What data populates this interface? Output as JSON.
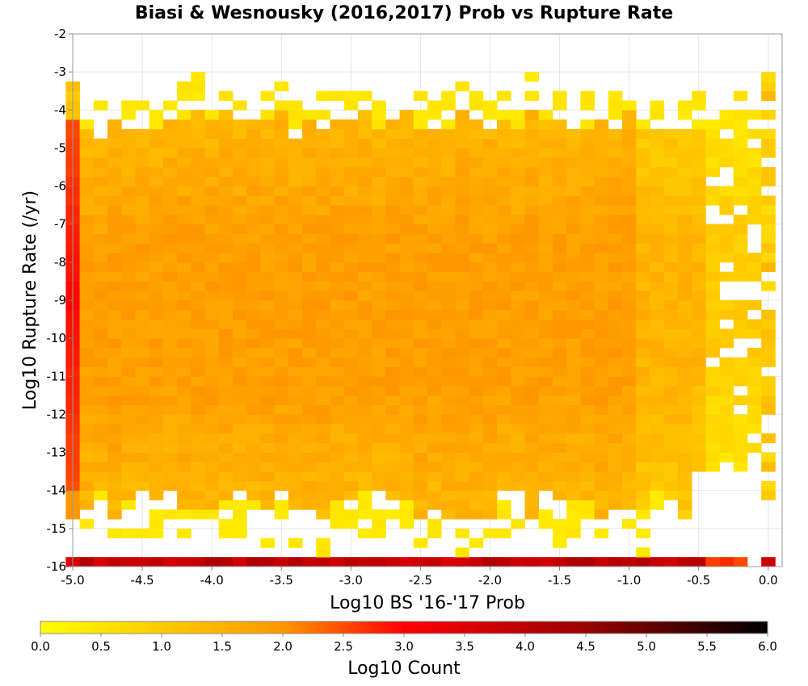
{
  "chart_data": {
    "type": "heatmap",
    "title": "Biasi & Wesnousky (2016,2017) Prob vs Rupture Rate",
    "xlabel": "Log10 BS '16-'17 Prob",
    "ylabel": "Log10 Rupture Rate (/yr)",
    "xlim": [
      -5.0,
      0.1
    ],
    "ylim": [
      -16,
      -2
    ],
    "x_bin_width": 0.1,
    "y_bin_width": 0.25,
    "x_ticks": [
      "-5.0",
      "-4.5",
      "-4.0",
      "-3.5",
      "-3.0",
      "-2.5",
      "-2.0",
      "-1.5",
      "-1.0",
      "-0.5",
      "0.0"
    ],
    "y_ticks": [
      "-2",
      "-3",
      "-4",
      "-5",
      "-6",
      "-7",
      "-8",
      "-9",
      "-10",
      "-11",
      "-12",
      "-13",
      "-14",
      "-15",
      "-16"
    ],
    "grid": true,
    "colorbar": {
      "label": "Log10 Count",
      "min": 0.0,
      "max": 6.0,
      "ticks": [
        "0.0",
        "0.5",
        "1.0",
        "1.5",
        "2.0",
        "2.5",
        "3.0",
        "3.5",
        "4.0",
        "4.5",
        "5.0",
        "5.5",
        "6.0"
      ],
      "colors": [
        "#ffff00",
        "#ff8c00",
        "#ff0000",
        "#000000"
      ]
    },
    "description_of_values": "Log10 count per bin: bottom row (y=-16) ~3.5-4.2; leftmost column (x=-5.0) ~2.5-3.0; core region (x -4.8..-1.0, y -6..-12) ~1.4-1.8; edges fade to ~0-0.8",
    "rightmost_column_x": 0.0
  }
}
